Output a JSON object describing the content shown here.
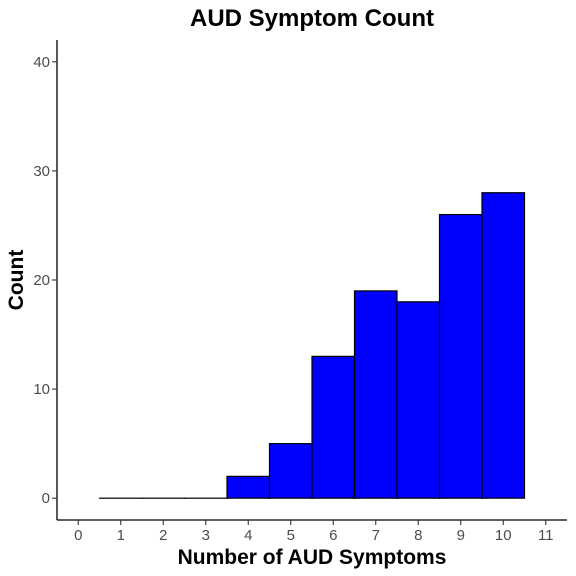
{
  "chart_data": {
    "type": "bar",
    "title": "AUD Symptom Count",
    "xlabel": "Number of AUD Symptoms",
    "ylabel": "Count",
    "x_ticks": [
      0,
      1,
      2,
      3,
      4,
      5,
      6,
      7,
      8,
      9,
      10,
      11
    ],
    "y_ticks": [
      0,
      10,
      20,
      30,
      40
    ],
    "xlim": [
      -0.5,
      11.5
    ],
    "ylim": [
      -2,
      42
    ],
    "categories": [
      1,
      2,
      3,
      4,
      5,
      6,
      7,
      8,
      9,
      10
    ],
    "values": [
      0,
      0,
      0,
      2,
      5,
      13,
      19,
      18,
      26,
      28
    ],
    "bar_color": "#0000ff",
    "bar_outline": "#000000",
    "grid": false,
    "legend": "none"
  }
}
